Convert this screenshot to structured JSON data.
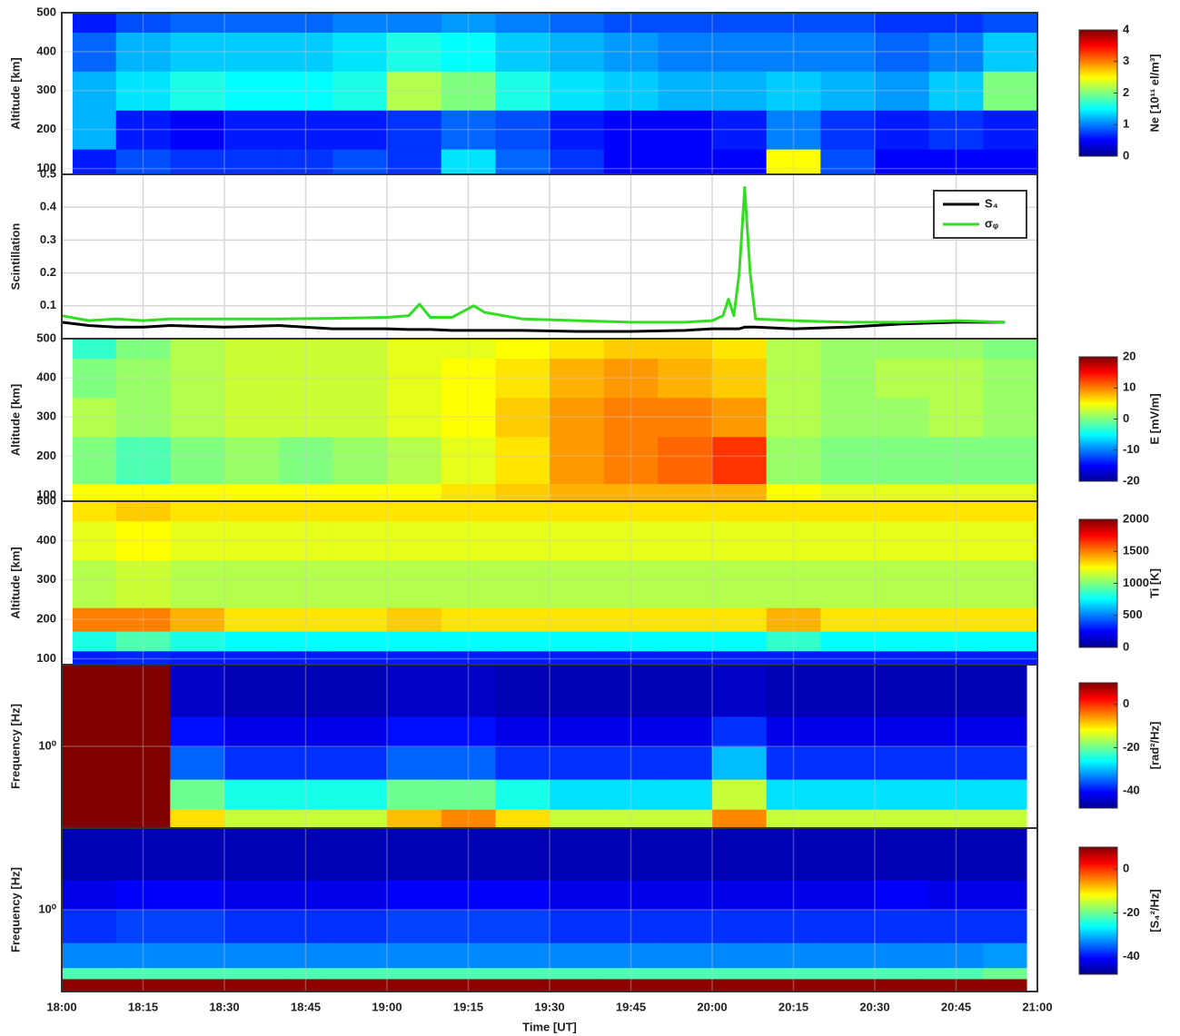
{
  "chart_data": [
    {
      "type": "heatmap",
      "ylabel": "Altitude [km]",
      "colorbar_label": "Ne [10¹¹ el/m³]",
      "colormap": "jet",
      "grid": true,
      "x_edges": [
        "18:02",
        "18:10",
        "18:20",
        "18:30",
        "18:40",
        "18:50",
        "19:00",
        "19:10",
        "19:20",
        "19:30",
        "19:40",
        "19:50",
        "20:00",
        "20:10",
        "20:20",
        "20:30",
        "20:40",
        "20:50",
        "21:00"
      ],
      "y": [
        85,
        150,
        250,
        350,
        450
      ],
      "z": [
        [
          0.6,
          0.8,
          0.7,
          0.7,
          0.7,
          0.8,
          0.7,
          1.4,
          0.9,
          0.7,
          0.5,
          0.5,
          0.5,
          2.5,
          0.8,
          0.5,
          0.5,
          0.5
        ],
        [
          1.2,
          0.6,
          0.5,
          0.6,
          0.6,
          0.6,
          0.7,
          0.9,
          0.8,
          0.6,
          0.5,
          0.5,
          0.6,
          1.0,
          0.7,
          0.6,
          0.7,
          0.6
        ],
        [
          1.2,
          1.4,
          1.6,
          1.5,
          1.5,
          1.6,
          2.2,
          2.0,
          1.6,
          1.4,
          1.3,
          1.2,
          1.2,
          1.3,
          1.2,
          1.1,
          1.3,
          2.0
        ],
        [
          0.9,
          1.2,
          1.3,
          1.3,
          1.3,
          1.4,
          1.6,
          1.5,
          1.3,
          1.2,
          1.1,
          1.0,
          1.0,
          1.0,
          1.0,
          0.9,
          1.0,
          1.3
        ],
        [
          0.6,
          0.8,
          0.9,
          0.9,
          0.9,
          1.0,
          1.0,
          1.1,
          1.0,
          0.9,
          0.8,
          0.8,
          0.8,
          0.8,
          0.8,
          0.7,
          0.7,
          0.8
        ]
      ],
      "xlim": [
        "18:00",
        "21:00"
      ],
      "xticks": [
        "18:00",
        "18:15",
        "18:30",
        "18:45",
        "19:00",
        "19:15",
        "19:30",
        "19:45",
        "20:00",
        "20:15",
        "20:30",
        "20:45",
        "21:00"
      ],
      "ylim": [
        85,
        500
      ],
      "yticks": [
        100,
        200,
        300,
        400,
        500
      ],
      "clim": [
        0,
        4
      ],
      "cticks": [
        0,
        1,
        2,
        3,
        4
      ]
    },
    {
      "type": "line",
      "ylabel": "Scintillation",
      "grid": true,
      "legend": "upper right",
      "x": [
        "18:00",
        "18:05",
        "18:10",
        "18:15",
        "18:20",
        "18:30",
        "18:40",
        "18:50",
        "19:00",
        "19:04",
        "19:06",
        "19:08",
        "19:12",
        "19:16",
        "19:18",
        "19:25",
        "19:35",
        "19:45",
        "19:55",
        "20:00",
        "20:02",
        "20:03",
        "20:04",
        "20:05",
        "20:06",
        "20:07",
        "20:08",
        "20:15",
        "20:25",
        "20:35",
        "20:45",
        "20:54"
      ],
      "series": [
        {
          "name": "S₄",
          "color": "#000000",
          "values": [
            0.05,
            0.04,
            0.035,
            0.035,
            0.04,
            0.035,
            0.04,
            0.03,
            0.03,
            0.028,
            0.028,
            0.028,
            0.025,
            0.025,
            0.025,
            0.025,
            0.022,
            0.022,
            0.025,
            0.03,
            0.03,
            0.03,
            0.03,
            0.03,
            0.035,
            0.035,
            0.035,
            0.03,
            0.035,
            0.045,
            0.05,
            0.05
          ]
        },
        {
          "name": "σᵩ",
          "color": "#33dd22",
          "values": [
            0.07,
            0.055,
            0.06,
            0.055,
            0.06,
            0.06,
            0.06,
            0.062,
            0.065,
            0.07,
            0.105,
            0.065,
            0.065,
            0.1,
            0.08,
            0.06,
            0.055,
            0.05,
            0.05,
            0.055,
            0.07,
            0.12,
            0.07,
            0.2,
            0.46,
            0.2,
            0.06,
            0.055,
            0.05,
            0.05,
            0.055,
            0.05
          ]
        }
      ],
      "xlim": [
        "18:00",
        "21:00"
      ],
      "xticks": [
        "18:00",
        "18:15",
        "18:30",
        "18:45",
        "19:00",
        "19:15",
        "19:30",
        "19:45",
        "20:00",
        "20:15",
        "20:30",
        "20:45",
        "21:00"
      ],
      "ylim": [
        0,
        0.5
      ],
      "yticks": [
        0.1,
        0.2,
        0.3,
        0.4,
        0.5
      ]
    },
    {
      "type": "heatmap",
      "ylabel": "Altitude [km]",
      "colorbar_label": "E [mV/m]",
      "colormap": "jet",
      "grid": true,
      "x_edges": [
        "18:02",
        "18:10",
        "18:20",
        "18:30",
        "18:40",
        "18:50",
        "19:00",
        "19:10",
        "19:20",
        "19:30",
        "19:40",
        "19:50",
        "20:00",
        "20:10",
        "20:20",
        "20:30",
        "20:40",
        "20:50",
        "21:00"
      ],
      "y": [
        85,
        130,
        250,
        350,
        450
      ],
      "z": [
        [
          5,
          5,
          5,
          5,
          5,
          5,
          5,
          6,
          7,
          8,
          8,
          8,
          8,
          5,
          4,
          4,
          4,
          4
        ],
        [
          0,
          -2,
          0,
          1,
          0,
          1,
          2,
          4,
          6,
          9,
          10,
          11,
          13,
          1,
          0,
          0,
          0,
          0
        ],
        [
          2,
          1,
          2,
          3,
          3,
          3,
          4,
          5,
          7,
          9,
          10,
          10,
          9,
          2,
          1,
          1,
          2,
          1
        ],
        [
          0,
          1,
          2,
          3,
          3,
          3,
          4,
          5,
          6,
          8,
          9,
          8,
          7,
          2,
          1,
          2,
          2,
          1
        ],
        [
          -3,
          0,
          2,
          3,
          3,
          3,
          4,
          4,
          5,
          6,
          7,
          7,
          6,
          2,
          1,
          1,
          1,
          0
        ]
      ],
      "xlim": [
        "18:00",
        "21:00"
      ],
      "xticks": [
        "18:00",
        "18:15",
        "18:30",
        "18:45",
        "19:00",
        "19:15",
        "19:30",
        "19:45",
        "20:00",
        "20:15",
        "20:30",
        "20:45",
        "21:00"
      ],
      "ylim": [
        85,
        500
      ],
      "yticks": [
        100,
        200,
        300,
        400,
        500
      ],
      "clim": [
        -20,
        20
      ],
      "cticks": [
        -20,
        -10,
        0,
        10,
        20
      ]
    },
    {
      "type": "heatmap",
      "ylabel": "Altitude [km]",
      "colorbar_label": "Ti [K]",
      "colormap": "jet",
      "grid": true,
      "x_edges": [
        "18:02",
        "18:10",
        "18:20",
        "18:30",
        "18:40",
        "18:50",
        "19:00",
        "19:10",
        "19:20",
        "19:30",
        "19:40",
        "19:50",
        "20:00",
        "20:10",
        "20:20",
        "20:30",
        "20:40",
        "20:50",
        "21:00"
      ],
      "y": [
        85,
        120,
        170,
        230,
        350,
        450
      ],
      "z": [
        [
          300,
          320,
          300,
          300,
          300,
          300,
          300,
          300,
          300,
          300,
          300,
          300,
          300,
          300,
          300,
          300,
          300,
          300
        ],
        [
          800,
          900,
          800,
          750,
          750,
          750,
          750,
          750,
          750,
          750,
          750,
          750,
          750,
          850,
          750,
          750,
          750,
          750
        ],
        [
          1500,
          1500,
          1400,
          1300,
          1300,
          1300,
          1350,
          1300,
          1300,
          1300,
          1300,
          1300,
          1300,
          1400,
          1300,
          1300,
          1300,
          1300
        ],
        [
          1100,
          1150,
          1100,
          1100,
          1100,
          1100,
          1100,
          1100,
          1100,
          1100,
          1100,
          1100,
          1100,
          1100,
          1100,
          1100,
          1100,
          1100
        ],
        [
          1200,
          1250,
          1200,
          1200,
          1200,
          1200,
          1200,
          1200,
          1200,
          1200,
          1200,
          1200,
          1200,
          1200,
          1200,
          1200,
          1200,
          1200
        ],
        [
          1300,
          1350,
          1300,
          1300,
          1300,
          1300,
          1300,
          1300,
          1300,
          1300,
          1300,
          1300,
          1300,
          1300,
          1300,
          1300,
          1300,
          1300
        ]
      ],
      "xlim": [
        "18:00",
        "21:00"
      ],
      "xticks": [
        "18:00",
        "18:15",
        "18:30",
        "18:45",
        "19:00",
        "19:15",
        "19:30",
        "19:45",
        "20:00",
        "20:15",
        "20:30",
        "20:45",
        "21:00"
      ],
      "ylim": [
        85,
        500
      ],
      "yticks": [
        100,
        200,
        300,
        400,
        500
      ],
      "clim": [
        0,
        2000
      ],
      "cticks": [
        0,
        500,
        1000,
        1500,
        2000
      ]
    },
    {
      "type": "heatmap",
      "ylabel": "Frequency [Hz]",
      "colorbar_label": "[rad²/Hz]",
      "colormap": "jet",
      "grid": true,
      "log": true,
      "x_edges": [
        "18:00",
        "18:10",
        "18:20",
        "18:30",
        "18:40",
        "18:50",
        "19:00",
        "19:10",
        "19:20",
        "19:30",
        "19:40",
        "19:50",
        "20:00",
        "20:10",
        "20:20",
        "20:30",
        "20:40",
        "20:50",
        "20:58"
      ],
      "y": [
        0.05,
        0.1,
        0.3,
        1,
        3
      ],
      "z": [
        [
          10,
          10,
          -10,
          -15,
          -15,
          -15,
          -8,
          -5,
          -10,
          -15,
          -15,
          -15,
          -5,
          -15,
          -15,
          -15,
          -15,
          -15
        ],
        [
          10,
          10,
          -20,
          -25,
          -25,
          -25,
          -20,
          -20,
          -25,
          -28,
          -28,
          -28,
          -15,
          -28,
          -28,
          -28,
          -28,
          -28
        ],
        [
          10,
          10,
          -35,
          -38,
          -38,
          -38,
          -35,
          -35,
          -38,
          -38,
          -38,
          -38,
          -30,
          -38,
          -38,
          -38,
          -38,
          -38
        ],
        [
          10,
          10,
          -40,
          -42,
          -42,
          -42,
          -40,
          -40,
          -42,
          -42,
          -42,
          -42,
          -38,
          -42,
          -42,
          -42,
          -42,
          -42
        ],
        [
          10,
          10,
          -44,
          -45,
          -45,
          -45,
          -44,
          -44,
          -45,
          -45,
          -45,
          -45,
          -44,
          -45,
          -45,
          -45,
          -45,
          -45
        ]
      ],
      "xlim": [
        "18:00",
        "21:00"
      ],
      "xticks": [
        "18:00",
        "18:15",
        "18:30",
        "18:45",
        "19:00",
        "19:15",
        "19:30",
        "19:45",
        "20:00",
        "20:15",
        "20:30",
        "20:45",
        "21:00"
      ],
      "ylim": [
        0.05,
        20
      ],
      "yticks": [
        {
          "value": 1,
          "label": "10⁰"
        }
      ],
      "clim": [
        -48,
        10
      ],
      "cticks": [
        -40,
        -20,
        0
      ]
    },
    {
      "type": "heatmap",
      "ylabel": "Frequency [Hz]",
      "colorbar_label": "[S₄²/Hz]",
      "colormap": "jet",
      "grid": true,
      "log": true,
      "xlabel": "Time [UT]",
      "x_edges": [
        "18:00",
        "18:10",
        "18:20",
        "18:30",
        "18:40",
        "18:50",
        "19:00",
        "19:10",
        "19:20",
        "19:30",
        "19:40",
        "19:50",
        "20:00",
        "20:10",
        "20:20",
        "20:30",
        "20:40",
        "20:50",
        "20:58"
      ],
      "y": [
        0.05,
        0.08,
        0.12,
        0.3,
        1,
        3
      ],
      "z": [
        [
          9,
          9,
          9,
          9,
          9,
          9,
          9,
          9,
          9,
          9,
          9,
          9,
          9,
          9,
          9,
          9,
          9,
          9
        ],
        [
          -22,
          -22,
          -22,
          -22,
          -22,
          -22,
          -22,
          -22,
          -22,
          -22,
          -22,
          -22,
          -22,
          -22,
          -22,
          -22,
          -22,
          -20
        ],
        [
          -33,
          -33,
          -33,
          -33,
          -33,
          -33,
          -33,
          -33,
          -33,
          -33,
          -33,
          -33,
          -33,
          -33,
          -33,
          -33,
          -33,
          -32
        ],
        [
          -38,
          -37,
          -37,
          -38,
          -38,
          -38,
          -37,
          -37,
          -37,
          -38,
          -38,
          -38,
          -38,
          -38,
          -38,
          -38,
          -38,
          -38
        ],
        [
          -42,
          -41,
          -41,
          -42,
          -42,
          -42,
          -41,
          -41,
          -41,
          -42,
          -42,
          -42,
          -42,
          -42,
          -42,
          -41,
          -42,
          -42
        ],
        [
          -45,
          -45,
          -45,
          -45,
          -45,
          -45,
          -45,
          -45,
          -45,
          -45,
          -45,
          -45,
          -45,
          -45,
          -45,
          -45,
          -45,
          -45
        ]
      ],
      "xlim": [
        "18:00",
        "21:00"
      ],
      "xticks": [
        "18:00",
        "18:15",
        "18:30",
        "18:45",
        "19:00",
        "19:15",
        "19:30",
        "19:45",
        "20:00",
        "20:15",
        "20:30",
        "20:45",
        "21:00"
      ],
      "ylim": [
        0.05,
        20
      ],
      "yticks": [
        {
          "value": 1,
          "label": "10⁰"
        }
      ],
      "clim": [
        -48,
        10
      ],
      "cticks": [
        -40,
        -20,
        0
      ]
    }
  ]
}
